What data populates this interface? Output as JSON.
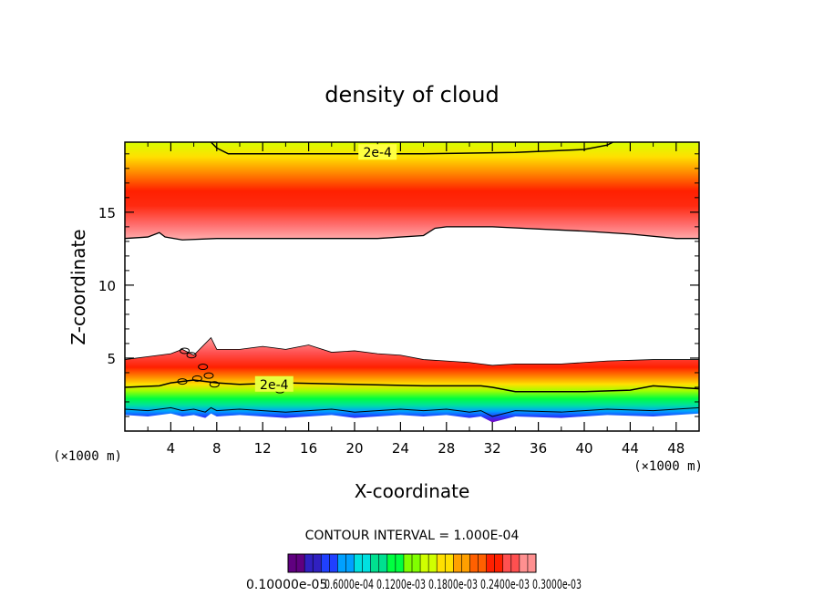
{
  "chart_data": {
    "type": "heatmap",
    "title": "density of cloud",
    "xlabel": "X-coordinate",
    "ylabel": "Z-coordinate",
    "x_unit": "(×1000 m)",
    "z_unit": "(×1000 m)",
    "xlim": [
      0,
      50
    ],
    "ylim": [
      0,
      19.8
    ],
    "x_ticks": [
      4,
      8,
      12,
      16,
      20,
      24,
      28,
      32,
      36,
      40,
      44,
      48
    ],
    "y_ticks": [
      5,
      10,
      15
    ],
    "contour_interval_text": "CONTOUR INTERVAL = 1.000E-04",
    "contour_labels": [
      "2e-4",
      "2e-4"
    ],
    "colorbar_tick_labels_text": "0.10000e-05",
    "colorbar_overlapping_text": "0.6000e-04 0.1200e-03 0.1800e-03 0.2400e-03 0.3000e-03",
    "colorbar_range": [
      1e-06,
      0.0003
    ],
    "upper_layer": {
      "x": [
        0,
        2,
        3,
        3.5,
        5,
        8,
        14,
        22,
        26,
        27,
        28,
        32,
        40,
        44,
        48,
        50
      ],
      "bottom": [
        13.2,
        13.3,
        13.6,
        13.3,
        13.1,
        13.2,
        13.2,
        13.2,
        13.4,
        13.9,
        14.0,
        14.0,
        13.7,
        13.5,
        13.2,
        13.2
      ],
      "top": [
        19.8,
        19.8,
        19.8,
        19.8,
        19.8,
        19.8,
        19.8,
        19.8,
        19.8,
        19.8,
        19.8,
        19.8,
        19.8,
        19.8,
        19.8,
        19.8
      ],
      "peak_z": 15.5,
      "contour_2e4_z": [
        19.8,
        19.4,
        19.0,
        19.0,
        19.0,
        19.0,
        19.1,
        19.3,
        19.6,
        19.8
      ]
    },
    "lower_layer": {
      "x": [
        0,
        2,
        4,
        5,
        6,
        7,
        7.5,
        8,
        10,
        12,
        14,
        16,
        18,
        20,
        22,
        24,
        26,
        28,
        30,
        31,
        32,
        34,
        38,
        42,
        46,
        50
      ],
      "top": [
        4.9,
        5.1,
        5.3,
        5.6,
        5.2,
        6.0,
        6.4,
        5.6,
        5.6,
        5.8,
        5.6,
        5.9,
        5.4,
        5.5,
        5.3,
        5.2,
        4.9,
        4.8,
        4.7,
        4.6,
        4.5,
        4.6,
        4.6,
        4.8,
        4.9,
        4.9
      ],
      "base": [
        1.1,
        1.0,
        1.2,
        1.0,
        1.1,
        0.9,
        1.2,
        1.0,
        1.1,
        1.0,
        0.9,
        1.0,
        1.1,
        0.9,
        1.0,
        1.1,
        1.0,
        1.1,
        0.9,
        1.0,
        0.6,
        1.0,
        0.9,
        1.1,
        1.0,
        1.2
      ],
      "contour_2e4_z": [
        3.0,
        3.1,
        3.3,
        3.5,
        3.3,
        3.2,
        3.3,
        3.2,
        3.1,
        3.1,
        3.0,
        2.7,
        2.7,
        2.8,
        3.1,
        2.9
      ]
    }
  }
}
